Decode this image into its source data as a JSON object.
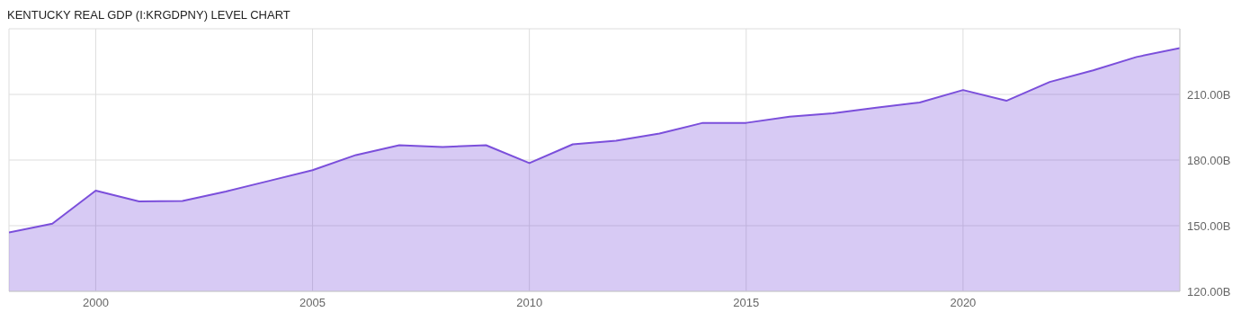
{
  "chart_data": {
    "type": "area",
    "title": "KENTUCKY REAL GDP (I:KRGDPNY) LEVEL CHART",
    "x": [
      1998,
      1999,
      2000,
      2001,
      2002,
      2003,
      2004,
      2005,
      2006,
      2007,
      2008,
      2009,
      2010,
      2011,
      2012,
      2013,
      2014,
      2015,
      2016,
      2017,
      2018,
      2019,
      2020,
      2021,
      2022,
      2023,
      2024,
      2025
    ],
    "series": [
      {
        "color": "#7b4fdb",
        "values": [
          146.9,
          150.9,
          166.0,
          161.1,
          161.3,
          165.6,
          170.5,
          175.4,
          182.3,
          186.8,
          186.0,
          186.8,
          178.6,
          187.2,
          188.8,
          192.1,
          197.0,
          197.0,
          199.8,
          201.4,
          203.9,
          206.3,
          212.0,
          207.1,
          215.7,
          221.0,
          227.1,
          231.2
        ]
      }
    ],
    "xlim": [
      1998,
      2025
    ],
    "xticks": [
      2000,
      2005,
      2010,
      2015,
      2020
    ],
    "ylim": [
      120,
      240
    ],
    "yticks": [
      {
        "value": 120,
        "label": "120.00B"
      },
      {
        "value": 150,
        "label": "150.00B"
      },
      {
        "value": 180,
        "label": "180.00B"
      },
      {
        "value": 210,
        "label": "210.00B"
      }
    ],
    "grid": true,
    "legend": false
  }
}
